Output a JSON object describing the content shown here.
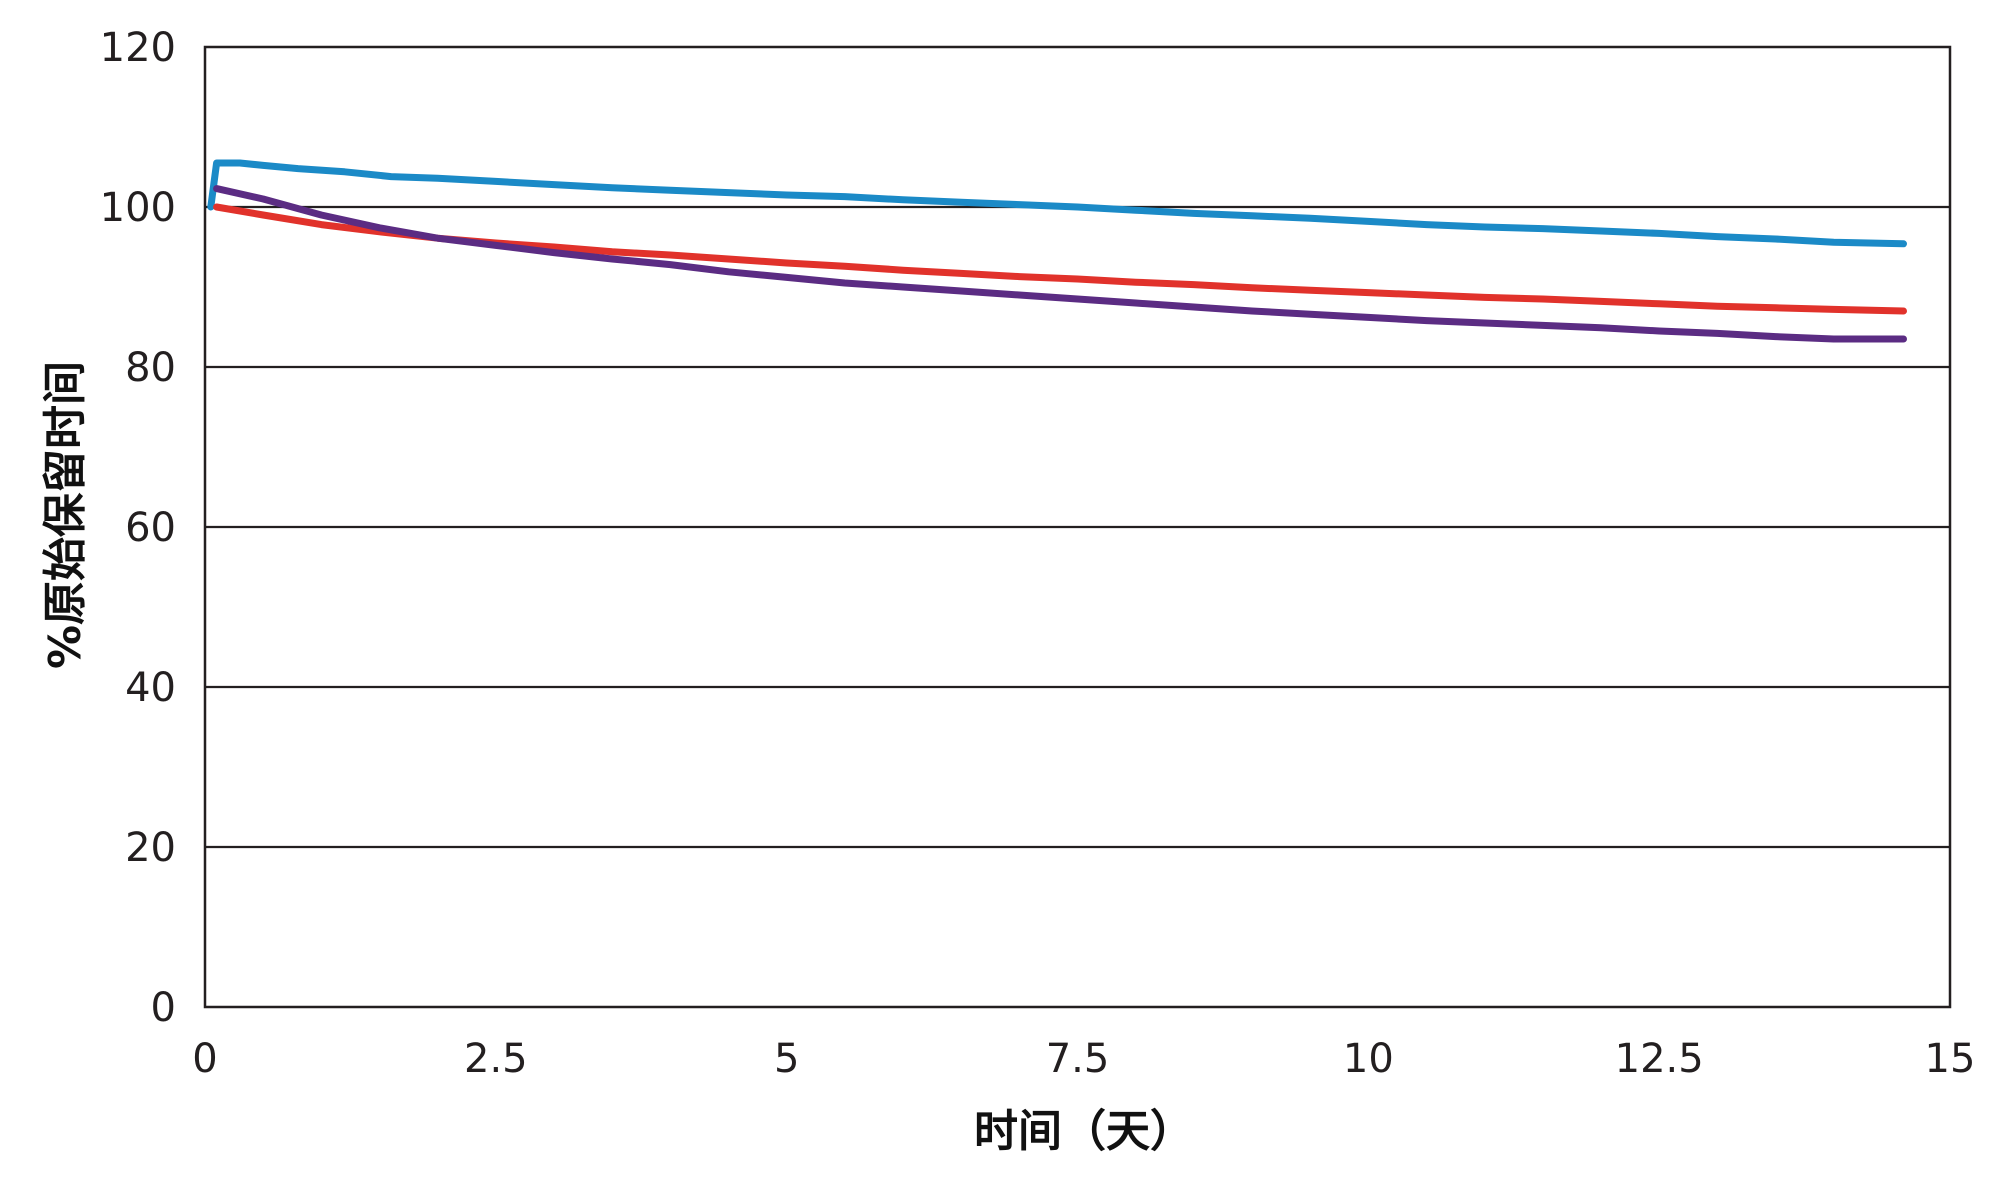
{
  "chart_data": {
    "type": "line",
    "title": "",
    "xlabel": "时间（天）",
    "ylabel": "%原始保留时间",
    "xlim": [
      0,
      15
    ],
    "ylim": [
      0,
      120
    ],
    "x_ticks": [
      "0",
      "2.5",
      "5",
      "7.5",
      "10",
      "12.5",
      "15"
    ],
    "y_ticks": [
      "0",
      "20",
      "40",
      "60",
      "80",
      "100",
      "120"
    ],
    "grid": "horizontal",
    "legend": "none",
    "series": [
      {
        "color": "#1b8ac7",
        "points": [
          [
            0.05,
            100
          ],
          [
            0.1,
            105.5
          ],
          [
            0.3,
            105.5
          ],
          [
            0.5,
            105.2
          ],
          [
            0.8,
            104.8
          ],
          [
            1.2,
            104.4
          ],
          [
            1.6,
            103.8
          ],
          [
            2.0,
            103.6
          ],
          [
            2.5,
            103.2
          ],
          [
            3.0,
            102.8
          ],
          [
            3.5,
            102.4
          ],
          [
            4.0,
            102.1
          ],
          [
            4.5,
            101.8
          ],
          [
            5.0,
            101.5
          ],
          [
            5.5,
            101.3
          ],
          [
            6.0,
            100.9
          ],
          [
            6.5,
            100.6
          ],
          [
            7.0,
            100.3
          ],
          [
            7.5,
            100.0
          ],
          [
            8.0,
            99.6
          ],
          [
            8.5,
            99.2
          ],
          [
            9.0,
            98.9
          ],
          [
            9.5,
            98.6
          ],
          [
            10.0,
            98.2
          ],
          [
            10.5,
            97.8
          ],
          [
            11.0,
            97.5
          ],
          [
            11.5,
            97.3
          ],
          [
            12.0,
            97.0
          ],
          [
            12.5,
            96.7
          ],
          [
            13.0,
            96.3
          ],
          [
            13.5,
            96.0
          ],
          [
            14.0,
            95.6
          ],
          [
            14.6,
            95.4
          ]
        ]
      },
      {
        "color": "#e1322b",
        "points": [
          [
            0.1,
            100
          ],
          [
            0.5,
            99.0
          ],
          [
            1.0,
            97.8
          ],
          [
            1.5,
            96.9
          ],
          [
            2.0,
            96.1
          ],
          [
            2.5,
            95.5
          ],
          [
            3.0,
            95.0
          ],
          [
            3.5,
            94.4
          ],
          [
            4.0,
            94.0
          ],
          [
            4.5,
            93.5
          ],
          [
            5.0,
            93.0
          ],
          [
            5.5,
            92.6
          ],
          [
            6.0,
            92.1
          ],
          [
            6.5,
            91.7
          ],
          [
            7.0,
            91.3
          ],
          [
            7.5,
            91.0
          ],
          [
            8.0,
            90.6
          ],
          [
            8.5,
            90.3
          ],
          [
            9.0,
            89.9
          ],
          [
            9.5,
            89.6
          ],
          [
            10.0,
            89.3
          ],
          [
            10.5,
            89.0
          ],
          [
            11.0,
            88.7
          ],
          [
            11.5,
            88.5
          ],
          [
            12.0,
            88.2
          ],
          [
            12.5,
            87.9
          ],
          [
            13.0,
            87.6
          ],
          [
            13.5,
            87.4
          ],
          [
            14.0,
            87.2
          ],
          [
            14.6,
            87.0
          ]
        ]
      },
      {
        "color": "#5b2c83",
        "points": [
          [
            0.1,
            102.3
          ],
          [
            0.5,
            101.0
          ],
          [
            1.0,
            99.0
          ],
          [
            1.5,
            97.4
          ],
          [
            2.0,
            96.1
          ],
          [
            2.5,
            95.2
          ],
          [
            3.0,
            94.3
          ],
          [
            3.5,
            93.5
          ],
          [
            4.0,
            92.8
          ],
          [
            4.5,
            91.9
          ],
          [
            5.0,
            91.2
          ],
          [
            5.5,
            90.5
          ],
          [
            6.0,
            90.0
          ],
          [
            6.5,
            89.5
          ],
          [
            7.0,
            89.0
          ],
          [
            7.5,
            88.5
          ],
          [
            8.0,
            88.0
          ],
          [
            8.5,
            87.5
          ],
          [
            9.0,
            87.0
          ],
          [
            9.5,
            86.6
          ],
          [
            10.0,
            86.2
          ],
          [
            10.5,
            85.8
          ],
          [
            11.0,
            85.5
          ],
          [
            11.5,
            85.2
          ],
          [
            12.0,
            84.9
          ],
          [
            12.5,
            84.5
          ],
          [
            13.0,
            84.2
          ],
          [
            13.5,
            83.8
          ],
          [
            14.0,
            83.5
          ],
          [
            14.6,
            83.5
          ]
        ]
      }
    ]
  }
}
